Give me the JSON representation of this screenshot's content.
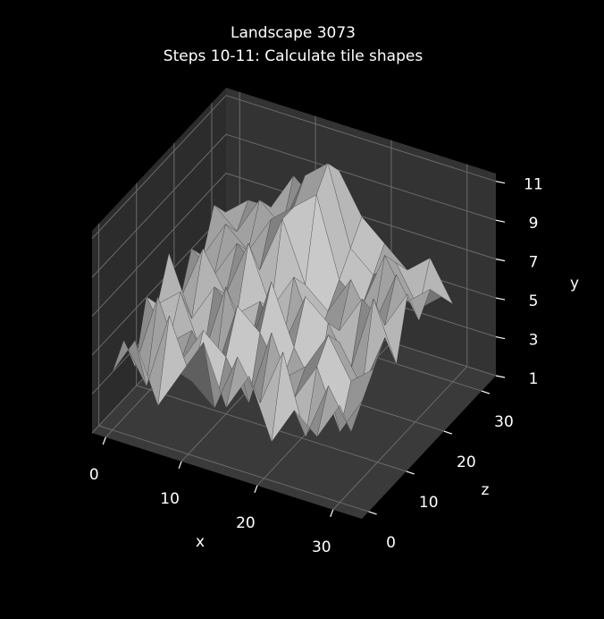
{
  "chart_data": {
    "type": "surface3d",
    "title": "Landscape 3073",
    "subtitle": "Steps 10-11: Calculate tile shapes",
    "xlabel": "x",
    "ylabel": "y",
    "zlabel": "z",
    "x": [
      0,
      3,
      6,
      9,
      12,
      15,
      18,
      21,
      24,
      27,
      30
    ],
    "z": [
      0,
      3,
      6,
      9,
      12,
      15,
      18,
      21,
      24,
      27,
      30
    ],
    "values": [
      [
        4,
        6,
        3,
        5,
        7,
        4,
        6,
        3,
        5,
        4,
        6
      ],
      [
        5,
        3,
        7,
        4,
        3,
        6,
        4,
        7,
        3,
        6,
        4
      ],
      [
        3,
        7,
        4,
        6,
        5,
        3,
        7,
        4,
        6,
        3,
        5
      ],
      [
        6,
        4,
        5,
        3,
        7,
        6,
        4,
        5,
        7,
        5,
        6
      ],
      [
        5,
        6,
        3,
        7,
        4,
        8,
        5,
        3,
        6,
        4,
        7
      ],
      [
        7,
        4,
        6,
        5,
        6,
        4,
        7,
        6,
        4,
        8,
        5
      ],
      [
        4,
        7,
        5,
        8,
        5,
        7,
        4,
        5,
        7,
        6,
        8
      ],
      [
        6,
        5,
        7,
        6,
        9,
        6,
        5,
        7,
        5,
        8,
        6
      ],
      [
        5,
        7,
        6,
        8,
        9,
        10,
        6,
        5,
        8,
        6,
        7
      ],
      [
        7,
        6,
        8,
        7,
        10,
        11,
        7,
        6,
        7,
        5,
        6
      ],
      [
        6,
        7,
        7,
        9,
        8,
        10,
        8,
        7,
        6,
        7,
        5
      ]
    ],
    "color": "#a8a8a8",
    "xlim": [
      -1.8,
      33.8
    ],
    "zlim": [
      -1.8,
      33.8
    ],
    "ylim": [
      1,
      11.4
    ],
    "xticks": [
      0,
      10,
      20,
      30
    ],
    "zticks": [
      0,
      10,
      20,
      30
    ],
    "yticks": [
      1,
      3,
      5,
      7,
      9,
      11
    ],
    "grid": true
  }
}
